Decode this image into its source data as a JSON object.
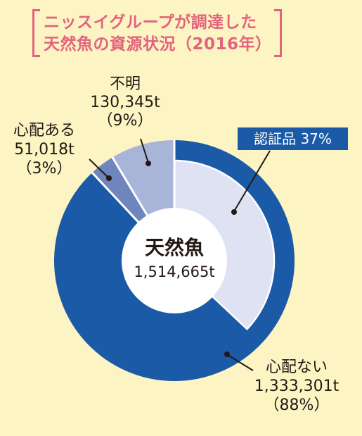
{
  "colors": {
    "background": "#fcf4c3",
    "title": "#e3637d",
    "label_text": "#231815",
    "badge": "#1b5aa6",
    "badge_text": "#ffffff",
    "separator": "#ffffff",
    "center_hole": "#ffffff",
    "leader": "#231815"
  },
  "chart_data": {
    "type": "pie",
    "title_lines": [
      "ニッスイグループが調達した",
      "天然魚の資源状況（2016年）"
    ],
    "center_label": "天然魚",
    "center_value_text": "1,514,665t",
    "slices": [
      {
        "label": "心配ない",
        "value": 1333301,
        "value_text": "1,333,301t",
        "percent_text": "（88%）",
        "color": "#1b5aa6"
      },
      {
        "label": "心配ある",
        "value": 51018,
        "value_text": "51,018t",
        "percent_text": "（3%）",
        "color": "#6e85bd"
      },
      {
        "label": "不明",
        "value": 130345,
        "value_text": "130,345t",
        "percent_text": "（9%）",
        "color": "#a8b4d8"
      }
    ],
    "sub_slice": {
      "label": "認証品",
      "percent_text": "37%",
      "percent": 37,
      "parent_index": 0,
      "color": "#dfe2f3"
    }
  }
}
